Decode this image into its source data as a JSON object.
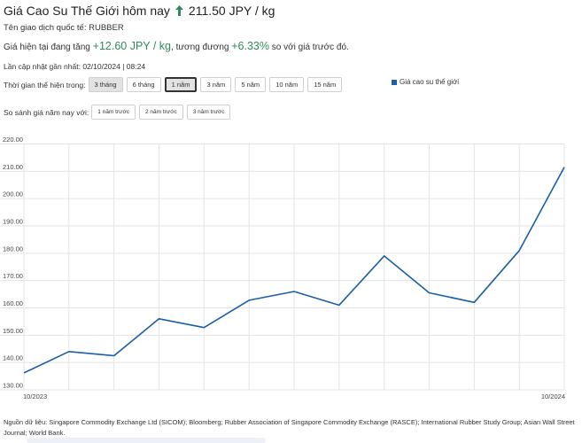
{
  "header": {
    "title": "Giá Cao Su Thế Giới hôm nay",
    "price": "211.50 JPY / kg",
    "ticker_line": "Tên giao dịch quốc tế: RUBBER",
    "change_prefix": "Giá hiện tại đang tăng",
    "change_abs": "+12.60 JPY / kg",
    "change_mid": ", tương đương",
    "change_pct": "+6.33%",
    "change_suffix": "so với giá trước đó.",
    "updated": "Lần cập nhật gần nhất: 02/10/2024 | 08:24"
  },
  "period": {
    "label": "Thời gian thể hiện trong:",
    "buttons": [
      "3 tháng",
      "6 tháng",
      "1 năm",
      "3 năm",
      "5 năm",
      "10 năm",
      "15 năm"
    ],
    "selected": "1 năm"
  },
  "compare": {
    "label": "So sánh giá năm nay với:",
    "buttons": [
      "1 năm trước",
      "2 năm trước",
      "3 năm trước"
    ]
  },
  "colors": {
    "accent": "#1a5fa8",
    "up": "#2e8b57",
    "grid": "#e3e3e3"
  },
  "chart_data": {
    "type": "line",
    "series": [
      {
        "name": "Giá cao su thế giới",
        "values": [
          136.2,
          144.0,
          142.5,
          156.0,
          152.8,
          162.8,
          166.0,
          161.0,
          179.0,
          165.5,
          162.0,
          181.0,
          211.5
        ]
      }
    ],
    "x_tick_labels": [
      "10/2023",
      "10/2024"
    ],
    "yticks": [
      130,
      140,
      150,
      160,
      170,
      180,
      190,
      200,
      210,
      220
    ],
    "ytick_labels": [
      "130.00",
      "140.00",
      "150.00",
      "160.00",
      "170.00",
      "180.00",
      "190.00",
      "200.00",
      "210.00",
      "220.00"
    ],
    "ylim": [
      130,
      220
    ],
    "grid": true,
    "legend_position": "top-right"
  },
  "source_text": "Nguồn dữ liệu: Singapore Commodity Exchange Ltd (SICOM); Bloomberg; Rubber Association of Singapore Commodity Exchange (RASCE); International Rubber Study Group; Asian Wall Street Journal; World Bank."
}
